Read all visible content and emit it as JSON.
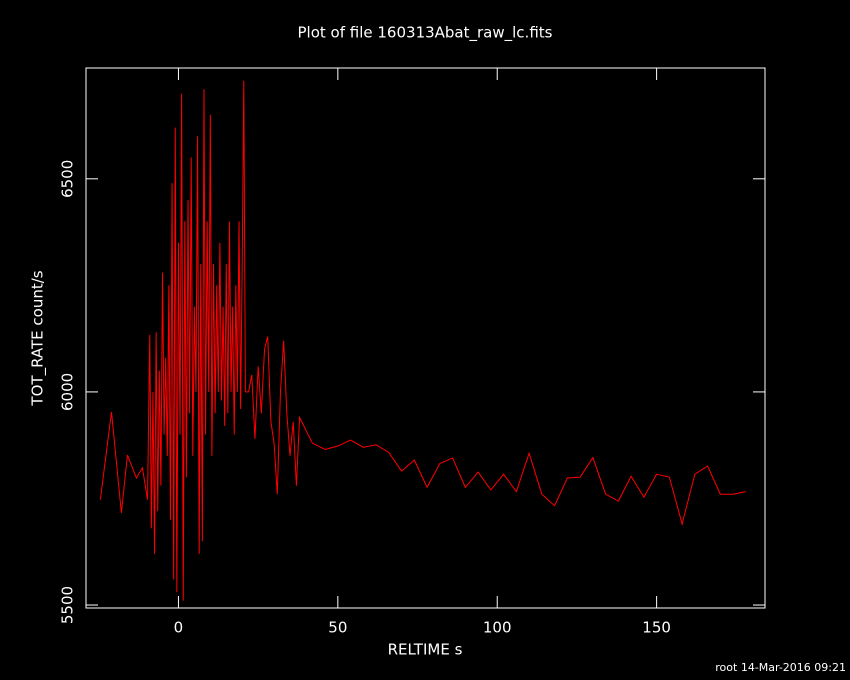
{
  "chart_data": {
    "type": "line",
    "title": "Plot of file 160313Abat_raw_lc.fits",
    "x_label": "RELTIME  s",
    "y_label": "TOT_RATE  count/s",
    "footer": "root 14-Mar-2016 09:21",
    "x": [
      -24.5,
      -21,
      -17.9,
      -16,
      -13.2,
      -11.3,
      -9.7,
      -9,
      -8.5,
      -8,
      -7.5,
      -7,
      -6.5,
      -6,
      -5.5,
      -5,
      -4.5,
      -4,
      -3.5,
      -3,
      -2.5,
      -2,
      -1.5,
      -1,
      -0.5,
      0,
      0.5,
      1,
      1.5,
      2,
      2.5,
      3,
      3.5,
      4,
      4.5,
      5,
      5.5,
      6,
      6.5,
      7,
      7.5,
      8,
      8.5,
      9,
      9.5,
      10,
      10.5,
      11,
      11.5,
      12,
      12.5,
      13,
      13.5,
      14,
      14.5,
      15,
      15.5,
      16,
      16.5,
      17,
      17.5,
      18,
      18.5,
      19,
      19.5,
      20,
      20.5,
      21,
      22,
      23,
      24,
      25,
      26,
      27,
      28,
      29,
      30,
      31,
      32,
      33,
      34,
      35,
      36,
      37,
      38,
      42,
      46,
      50,
      54,
      58,
      62,
      66,
      70,
      74,
      78,
      82,
      86,
      90,
      94,
      98,
      102,
      106,
      110,
      114,
      118,
      122,
      126,
      130,
      134,
      138,
      142,
      146,
      150,
      154,
      158,
      162,
      166,
      170,
      174,
      178
    ],
    "series": [
      {
        "name": "TOT_RATE",
        "color": "#ff0000",
        "values": [
          5747,
          5953,
          5716,
          5852,
          5798,
          5822,
          5747,
          6134,
          5680,
          6000,
          5620,
          6140,
          5720,
          6050,
          5780,
          6280,
          5900,
          6080,
          5850,
          6250,
          5700,
          6490,
          5560,
          6620,
          5530,
          6350,
          5900,
          6700,
          5510,
          6400,
          5800,
          6450,
          5950,
          6550,
          5850,
          6200,
          6000,
          6600,
          5620,
          6300,
          5650,
          6710,
          5900,
          6400,
          6000,
          6650,
          5850,
          6300,
          5950,
          6250,
          6000,
          6350,
          5980,
          6200,
          5920,
          6300,
          5950,
          6400,
          6000,
          6200,
          5900,
          6250,
          6000,
          6400,
          5960,
          6300,
          6730,
          6000,
          6000,
          6040,
          5890,
          6060,
          5950,
          6100,
          6130,
          5930,
          5880,
          5760,
          6000,
          6120,
          5950,
          5850,
          5930,
          5780,
          5940,
          5880,
          5865,
          5873,
          5887,
          5870,
          5876,
          5858,
          5814,
          5840,
          5776,
          5832,
          5845,
          5776,
          5812,
          5770,
          5807,
          5766,
          5856,
          5760,
          5733,
          5798,
          5800,
          5846,
          5760,
          5744,
          5802,
          5753,
          5807,
          5800,
          5690,
          5807,
          5826,
          5760,
          5760,
          5766
        ]
      }
    ],
    "xlim": [
      -29,
      184
    ],
    "ylim": [
      5493,
      6760
    ],
    "xticks": [
      0,
      50,
      100,
      150
    ],
    "yticks": [
      5500,
      6000,
      6500
    ]
  }
}
